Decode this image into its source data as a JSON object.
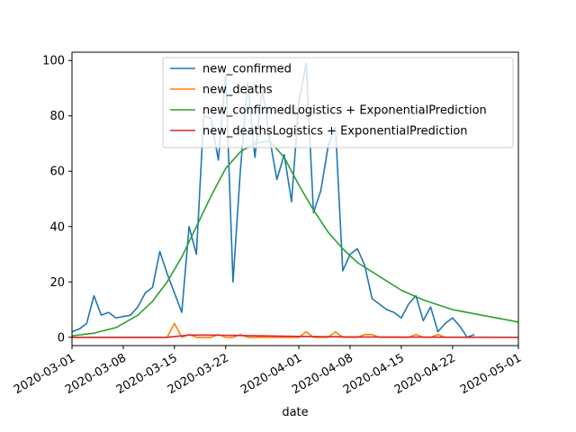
{
  "chart_data": {
    "type": "line",
    "xlabel": "date",
    "ylabel": "",
    "title": "",
    "xlim": [
      "2020-03-01",
      "2020-05-01"
    ],
    "ylim": [
      -3,
      103
    ],
    "x_ticks": [
      "2020-03-01",
      "2020-03-08",
      "2020-03-15",
      "2020-03-22",
      "2020-04-01",
      "2020-04-08",
      "2020-04-15",
      "2020-04-22",
      "2020-05-01"
    ],
    "y_ticks": [
      0,
      20,
      40,
      60,
      80,
      100
    ],
    "grid": false,
    "legend_position": "top-right",
    "colors": {
      "new_confirmed": "#1f77b4",
      "new_deaths": "#ff7f0e",
      "new_confirmedLogistics": "#2ca02c",
      "new_deathsLogistics": "#d62728"
    },
    "series": [
      {
        "name": "new_confirmed",
        "color_key": "new_confirmed",
        "x": [
          "2020-03-01",
          "2020-03-02",
          "2020-03-03",
          "2020-03-04",
          "2020-03-05",
          "2020-03-06",
          "2020-03-07",
          "2020-03-08",
          "2020-03-09",
          "2020-03-10",
          "2020-03-11",
          "2020-03-12",
          "2020-03-13",
          "2020-03-14",
          "2020-03-15",
          "2020-03-16",
          "2020-03-17",
          "2020-03-18",
          "2020-03-19",
          "2020-03-20",
          "2020-03-21",
          "2020-03-22",
          "2020-03-23",
          "2020-03-24",
          "2020-03-25",
          "2020-03-26",
          "2020-03-27",
          "2020-03-28",
          "2020-03-29",
          "2020-03-30",
          "2020-03-31",
          "2020-04-01",
          "2020-04-02",
          "2020-04-03",
          "2020-04-04",
          "2020-04-05",
          "2020-04-06",
          "2020-04-07",
          "2020-04-08",
          "2020-04-09",
          "2020-04-10",
          "2020-04-11",
          "2020-04-12",
          "2020-04-13",
          "2020-04-14",
          "2020-04-15",
          "2020-04-16",
          "2020-04-17",
          "2020-04-18",
          "2020-04-19",
          "2020-04-20",
          "2020-04-21",
          "2020-04-22",
          "2020-04-23",
          "2020-04-24",
          "2020-04-25"
        ],
        "values": [
          2,
          3,
          5,
          15,
          8,
          9,
          7,
          7.5,
          8,
          11,
          16,
          18,
          31,
          23,
          16,
          9,
          40,
          30,
          80,
          79,
          64,
          95,
          20,
          60,
          92,
          65,
          90,
          72,
          57,
          66,
          49,
          85,
          99,
          45,
          53,
          69,
          76,
          24,
          30,
          32,
          26,
          14,
          12,
          10,
          9,
          7,
          12,
          15,
          6,
          11,
          2,
          5,
          7,
          4,
          0,
          1
        ]
      },
      {
        "name": "new_deaths",
        "color_key": "new_deaths",
        "x": [
          "2020-03-01",
          "2020-03-02",
          "2020-03-03",
          "2020-03-04",
          "2020-03-05",
          "2020-03-06",
          "2020-03-07",
          "2020-03-08",
          "2020-03-09",
          "2020-03-10",
          "2020-03-11",
          "2020-03-12",
          "2020-03-13",
          "2020-03-14",
          "2020-03-15",
          "2020-03-16",
          "2020-03-17",
          "2020-03-18",
          "2020-03-19",
          "2020-03-20",
          "2020-03-21",
          "2020-03-22",
          "2020-03-23",
          "2020-03-24",
          "2020-03-25",
          "2020-03-26",
          "2020-03-27",
          "2020-03-28",
          "2020-03-29",
          "2020-03-30",
          "2020-03-31",
          "2020-04-01",
          "2020-04-02",
          "2020-04-03",
          "2020-04-04",
          "2020-04-05",
          "2020-04-06",
          "2020-04-07",
          "2020-04-08",
          "2020-04-09",
          "2020-04-10",
          "2020-04-11",
          "2020-04-12",
          "2020-04-13",
          "2020-04-14",
          "2020-04-15",
          "2020-04-16",
          "2020-04-17",
          "2020-04-18",
          "2020-04-19",
          "2020-04-20",
          "2020-04-21",
          "2020-04-22",
          "2020-04-23",
          "2020-04-24",
          "2020-04-25"
        ],
        "values": [
          0,
          0,
          0,
          0,
          0,
          0,
          0,
          0,
          0,
          0,
          0,
          0,
          0,
          0,
          5,
          0,
          1,
          0,
          0,
          0,
          1,
          0,
          0,
          1,
          0,
          0,
          0,
          0,
          0,
          0,
          0,
          0,
          2,
          0,
          0,
          0,
          2,
          0,
          0,
          0,
          1,
          1,
          0,
          0,
          0,
          0,
          0,
          1,
          0,
          0,
          1,
          0,
          0,
          0,
          0,
          0
        ]
      },
      {
        "name": "new_confirmedLogistics + ExponentialPrediction",
        "color_key": "new_confirmedLogistics",
        "x": [
          "2020-03-01",
          "2020-03-04",
          "2020-03-07",
          "2020-03-10",
          "2020-03-12",
          "2020-03-14",
          "2020-03-16",
          "2020-03-18",
          "2020-03-20",
          "2020-03-22",
          "2020-03-24",
          "2020-03-26",
          "2020-03-28",
          "2020-03-30",
          "2020-04-01",
          "2020-04-03",
          "2020-04-05",
          "2020-04-07",
          "2020-04-09",
          "2020-04-12",
          "2020-04-15",
          "2020-04-18",
          "2020-04-22",
          "2020-04-26",
          "2020-05-01"
        ],
        "values": [
          0.5,
          1.5,
          3.5,
          8,
          13,
          20,
          29,
          40,
          51,
          61,
          67,
          70,
          71,
          65,
          55,
          46,
          38,
          32,
          27,
          22,
          17,
          13.5,
          10,
          8,
          5.5
        ]
      },
      {
        "name": "new_deathsLogistics + ExponentialPrediction",
        "color_key": "new_deathsLogistics",
        "x": [
          "2020-03-01",
          "2020-03-10",
          "2020-03-14",
          "2020-03-17",
          "2020-03-20",
          "2020-03-25",
          "2020-04-01",
          "2020-04-10",
          "2020-05-01"
        ],
        "values": [
          0,
          0,
          0,
          0.8,
          0.8,
          0.6,
          0.3,
          0.1,
          0
        ]
      }
    ]
  }
}
